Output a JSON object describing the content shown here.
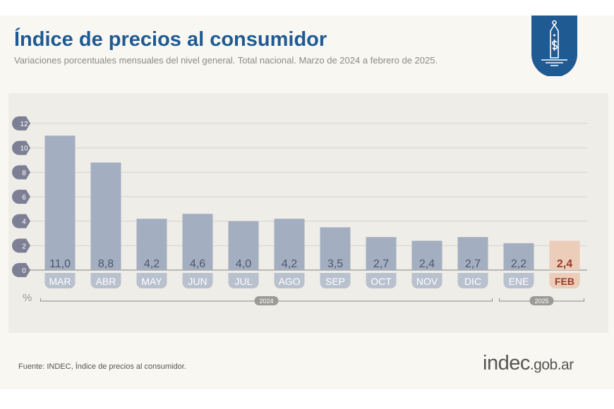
{
  "header": {
    "title": "Índice de precios al consumidor",
    "subtitle": "Variaciones porcentuales mensuales del nivel general. Total nacional. Marzo de 2024 a febrero de 2025.",
    "logo_icon": "price-tag-dollar-icon"
  },
  "footer": {
    "source": "Fuente: INDEC, Índice de precios al consumidor.",
    "brand_main": "indec",
    "brand_suffix": ".gob.ar"
  },
  "colors": {
    "bar": "#a3aec0",
    "highlight_bar": "#eccdb9",
    "highlight_text": "#9a3b2a",
    "accent": "#1f5a93"
  },
  "chart_data": {
    "type": "bar",
    "title": "Índice de precios al consumidor",
    "ylabel": "%",
    "ylim": [
      0,
      12
    ],
    "yticks": [
      0,
      2,
      4,
      6,
      8,
      10,
      12
    ],
    "categories": [
      "MAR",
      "ABR",
      "MAY",
      "JUN",
      "JUL",
      "AGO",
      "SEP",
      "OCT",
      "NOV",
      "DIC",
      "ENE",
      "FEB"
    ],
    "values": [
      11.0,
      8.8,
      4.2,
      4.6,
      4.0,
      4.2,
      3.5,
      2.7,
      2.4,
      2.7,
      2.2,
      2.4
    ],
    "labels": [
      "11,0",
      "8,8",
      "4,2",
      "4,6",
      "4,0",
      "4,2",
      "3,5",
      "2,7",
      "2,4",
      "2,7",
      "2,2",
      "2,4"
    ],
    "highlight_index": 11,
    "groups": [
      {
        "label": "2024",
        "from": 0,
        "to": 9
      },
      {
        "label": "2025",
        "from": 10,
        "to": 11
      }
    ],
    "grid": true
  }
}
